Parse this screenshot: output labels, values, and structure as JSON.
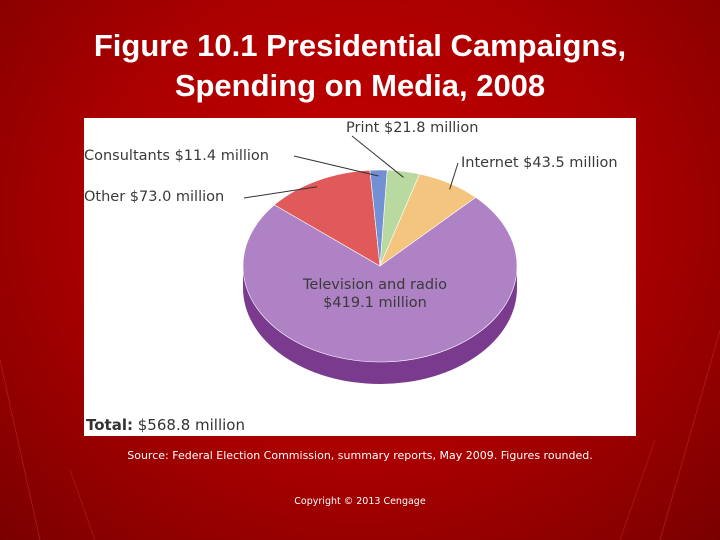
{
  "slide": {
    "title_line1": "Figure 10.1  Presidential Campaigns,",
    "title_line2": "Spending on Media, 2008",
    "source": "Source: Federal Election Commission, summary reports, May 2009. Figures rounded.",
    "copyright": "Copyright © 2013 Cengage"
  },
  "chart_data": {
    "type": "pie",
    "title": "Presidential Campaigns, Spending on Media, 2008",
    "unit": "million",
    "total_label": "Total:",
    "total_value": "$568.8 million",
    "slices": [
      {
        "name": "Print",
        "value": 21.8,
        "label": "Print $21.8 million",
        "color": "#b8d9a0"
      },
      {
        "name": "Internet",
        "value": 43.5,
        "label": "Internet $43.5 million",
        "color": "#f4c57e"
      },
      {
        "name": "Television and radio",
        "value": 419.1,
        "label_line1": "Television and radio",
        "label_line2": "$419.1 million",
        "color": "#ae82c4"
      },
      {
        "name": "Other",
        "value": 73.0,
        "label": "Other $73.0 million",
        "color": "#e05a5a"
      },
      {
        "name": "Consultants",
        "value": 11.4,
        "label": "Consultants $11.4 million",
        "color": "#7390d4"
      }
    ]
  },
  "colors": {
    "background": "#b00000",
    "title_text": "#ffffff",
    "pie_side": "#7a3a8e"
  }
}
